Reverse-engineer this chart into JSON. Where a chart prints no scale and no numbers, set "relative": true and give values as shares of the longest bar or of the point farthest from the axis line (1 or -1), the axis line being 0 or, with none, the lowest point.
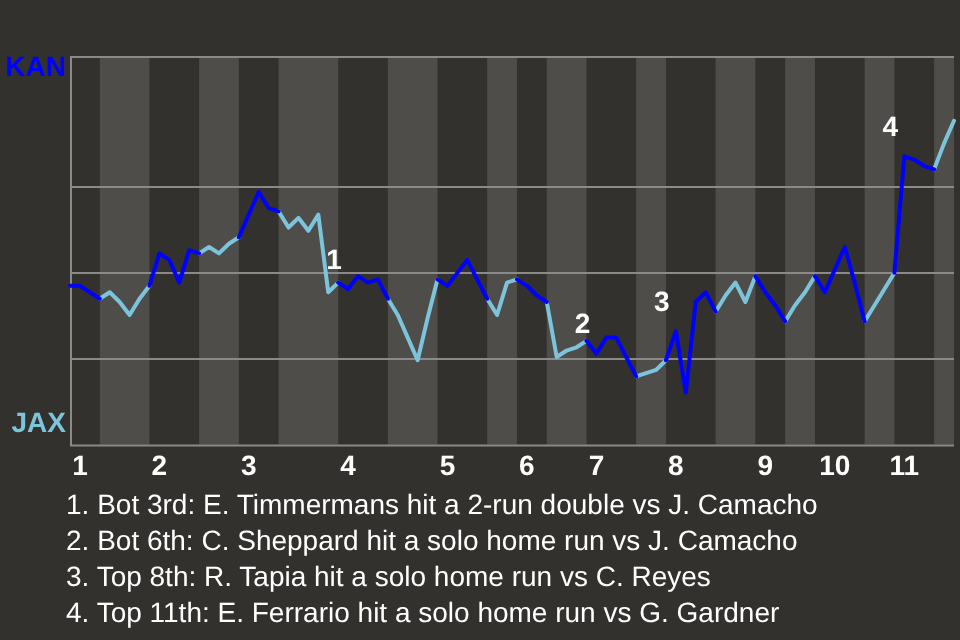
{
  "chart_data": {
    "type": "line",
    "relative": true,
    "categories": [
      null,
      "1",
      null,
      null,
      null,
      null,
      null,
      null,
      null,
      "2",
      null,
      null,
      null,
      null,
      null,
      null,
      null,
      null,
      "3",
      null,
      null,
      null,
      null,
      null,
      null,
      null,
      null,
      null,
      "4",
      null,
      null,
      null,
      null,
      null,
      null,
      null,
      null,
      null,
      "5",
      null,
      null,
      null,
      null,
      null,
      null,
      null,
      "6",
      null,
      null,
      null,
      null,
      null,
      null,
      "7",
      null,
      null,
      null,
      null,
      null,
      null,
      null,
      "8",
      null,
      null,
      null,
      null,
      null,
      null,
      null,
      null,
      "9",
      null,
      null,
      null,
      null,
      null,
      null,
      "10",
      null,
      null,
      null,
      null,
      null,
      null,
      "11",
      null,
      null,
      null,
      null,
      null
    ],
    "legend": "left",
    "marker": "none",
    "line_style": "solid",
    "ref_lines": [
      {
        "axis": "y",
        "value": 0.27,
        "color": "#8c8a88"
      },
      {
        "axis": "y",
        "value": 0.53,
        "color": "#8c8a88"
      },
      {
        "axis": "y",
        "value": 0.8,
        "color": "#8c8a88"
      }
    ],
    "series": [
      {
        "name": "KAN",
        "color": "#0000ff",
        "values": [
          0.49,
          0.49,
          0.47,
          0.45,
          null,
          null,
          null,
          null,
          0.49,
          0.59,
          0.57,
          0.5,
          0.6,
          0.59,
          null,
          null,
          null,
          0.64,
          0.71,
          0.78,
          0.73,
          0.72,
          null,
          null,
          null,
          null,
          null,
          0.5,
          0.48,
          0.52,
          0.5,
          0.51,
          0.45,
          null,
          null,
          null,
          null,
          0.51,
          0.49,
          0.53,
          0.57,
          0.51,
          0.45,
          null,
          null,
          0.51,
          0.49,
          0.46,
          0.44,
          null,
          null,
          null,
          0.32,
          0.28,
          0.33,
          0.33,
          0.27,
          0.21,
          null,
          null,
          0.26,
          0.35,
          0.16,
          0.44,
          0.47,
          0.41,
          null,
          null,
          null,
          0.52,
          0.47,
          0.43,
          0.38,
          null,
          null,
          0.52,
          0.47,
          0.54,
          0.61,
          0.5,
          0.38,
          null,
          null,
          0.53,
          0.89,
          0.88,
          0.86,
          0.85,
          null,
          null
        ]
      },
      {
        "name": "JAX",
        "color": "#7cc4dc",
        "values": [
          null,
          null,
          null,
          0.45,
          0.47,
          0.44,
          0.4,
          0.45,
          0.49,
          null,
          null,
          null,
          null,
          0.59,
          0.61,
          0.59,
          0.62,
          0.64,
          null,
          null,
          null,
          0.72,
          0.67,
          0.7,
          0.66,
          0.71,
          0.47,
          0.5,
          null,
          null,
          null,
          null,
          0.45,
          0.4,
          0.33,
          0.26,
          0.39,
          0.51,
          null,
          null,
          null,
          null,
          0.45,
          0.4,
          0.5,
          0.51,
          null,
          null,
          0.44,
          0.27,
          0.29,
          0.3,
          0.32,
          null,
          null,
          null,
          null,
          0.21,
          0.22,
          0.23,
          0.26,
          null,
          null,
          null,
          null,
          0.41,
          0.46,
          0.5,
          0.44,
          0.52,
          null,
          null,
          0.38,
          0.43,
          0.47,
          0.52,
          null,
          null,
          null,
          null,
          0.38,
          0.43,
          0.48,
          0.53,
          null,
          null,
          null,
          0.85,
          0.93,
          1
        ]
      }
    ],
    "annotations": [
      {
        "text": "1",
        "x": "4",
        "y": 0.48
      },
      {
        "text": "2",
        "x": "7",
        "y": 0.28
      },
      {
        "text": "3",
        "x": "8",
        "y": 0.35
      },
      {
        "text": "4",
        "x": "11",
        "y": 0.89
      },
      "1. Bot 3rd: E. Timmermans hit a 2-run double vs J. Camacho",
      "2. Bot 6th: C. Sheppard hit a solo home run vs J. Camacho",
      "3. Top 8th: R. Tapia hit a solo home run vs C. Reyes",
      "4. Top 11th: E. Ferrario hit a solo home run vs G. Gardner"
    ]
  }
}
